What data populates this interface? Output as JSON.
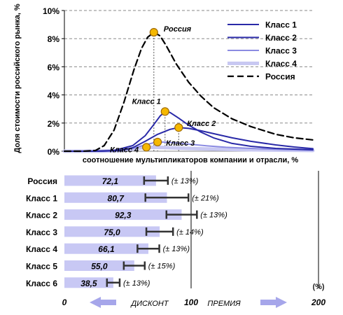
{
  "chart_data": [
    {
      "type": "line",
      "ylabel": "Доля стоимости российского рынка, %",
      "xlabel": "соотношение мультипликаторов компании и отрасли, %",
      "y_ticks": [
        "0%",
        "2%",
        "4%",
        "6%",
        "8%",
        "10%"
      ],
      "ylim": [
        0,
        10
      ],
      "xlim": [
        0,
        200
      ],
      "grid": "horizontal dashed",
      "legend_position": "top-right",
      "series": [
        {
          "name": "Класс 1",
          "color": "#2a2aa8",
          "style": "solid",
          "points": [
            [
              0,
              0
            ],
            [
              20,
              0
            ],
            [
              40,
              0.05
            ],
            [
              55,
              0.4
            ],
            [
              65,
              1.1
            ],
            [
              72,
              1.9
            ],
            [
              77,
              2.5
            ],
            [
              81,
              2.82
            ],
            [
              85,
              2.75
            ],
            [
              92,
              2.35
            ],
            [
              100,
              1.85
            ],
            [
              110,
              1.35
            ],
            [
              120,
              0.95
            ],
            [
              135,
              0.55
            ],
            [
              150,
              0.35
            ],
            [
              170,
              0.2
            ],
            [
              200,
              0.1
            ]
          ]
        },
        {
          "name": "Класс 2",
          "color": "#2a2aa8",
          "style": "solid",
          "points": [
            [
              0,
              0
            ],
            [
              30,
              0
            ],
            [
              45,
              0.05
            ],
            [
              55,
              0.25
            ],
            [
              65,
              0.7
            ],
            [
              75,
              1.2
            ],
            [
              85,
              1.55
            ],
            [
              92,
              1.68
            ],
            [
              100,
              1.62
            ],
            [
              110,
              1.45
            ],
            [
              120,
              1.25
            ],
            [
              135,
              0.95
            ],
            [
              150,
              0.7
            ],
            [
              170,
              0.45
            ],
            [
              185,
              0.3
            ],
            [
              200,
              0.18
            ]
          ]
        },
        {
          "name": "Класс 3",
          "color": "#8b8be2",
          "style": "solid",
          "points": [
            [
              0,
              0
            ],
            [
              30,
              0
            ],
            [
              45,
              0.05
            ],
            [
              55,
              0.2
            ],
            [
              65,
              0.45
            ],
            [
              72,
              0.6
            ],
            [
              78,
              0.65
            ],
            [
              85,
              0.62
            ],
            [
              100,
              0.5
            ],
            [
              115,
              0.38
            ],
            [
              130,
              0.28
            ],
            [
              150,
              0.2
            ],
            [
              175,
              0.12
            ],
            [
              200,
              0.07
            ]
          ]
        },
        {
          "name": "Класс 4",
          "color": "#c8c8f2",
          "style": "thick",
          "points": [
            [
              0,
              0
            ],
            [
              30,
              0
            ],
            [
              45,
              0.05
            ],
            [
              55,
              0.15
            ],
            [
              62,
              0.25
            ],
            [
              68,
              0.28
            ],
            [
              80,
              0.26
            ],
            [
              100,
              0.2
            ],
            [
              120,
              0.15
            ],
            [
              150,
              0.1
            ],
            [
              200,
              0.05
            ]
          ]
        },
        {
          "name": "Россия",
          "color": "#000000",
          "style": "dashed",
          "points": [
            [
              0,
              0
            ],
            [
              15,
              0
            ],
            [
              25,
              0.05
            ],
            [
              32,
              0.4
            ],
            [
              40,
              1.5
            ],
            [
              48,
              3.5
            ],
            [
              56,
              5.8
            ],
            [
              62,
              7.3
            ],
            [
              67,
              8.1
            ],
            [
              72,
              8.45
            ],
            [
              77,
              8.2
            ],
            [
              82,
              7.5
            ],
            [
              90,
              6.2
            ],
            [
              100,
              4.9
            ],
            [
              110,
              3.9
            ],
            [
              120,
              3.1
            ],
            [
              135,
              2.3
            ],
            [
              150,
              1.75
            ],
            [
              170,
              1.2
            ],
            [
              185,
              0.95
            ],
            [
              200,
              0.8
            ]
          ]
        }
      ],
      "peak_labels": [
        {
          "label": "Россия",
          "x": 72,
          "y": 8.45
        },
        {
          "label": "Класс 1",
          "x": 81,
          "y": 2.82
        },
        {
          "label": "Класс 2",
          "x": 92,
          "y": 1.68
        },
        {
          "label": "Класс 3",
          "x": 75,
          "y": 0.65
        },
        {
          "label": "Класс 4",
          "x": 66,
          "y": 0.28
        }
      ]
    },
    {
      "type": "bar",
      "orientation": "horizontal",
      "categories": [
        "Россия",
        "Класс 1",
        "Класс 2",
        "Класс 3",
        "Класс 4",
        "Класс 5",
        "Класс 6"
      ],
      "values": [
        72.1,
        80.7,
        92.3,
        75.0,
        66.1,
        55.0,
        38.5
      ],
      "value_labels": [
        "72,1",
        "80,7",
        "92,3",
        "75,0",
        "66,1",
        "55,0",
        "38,5"
      ],
      "error_pct": [
        13,
        21,
        13,
        14,
        13,
        15,
        13
      ],
      "error_labels": [
        "(± 13%)",
        "(± 21%)",
        "(± 13%)",
        "(± 14%)",
        "(± 13%)",
        "(± 15%)",
        "(± 13%)"
      ],
      "xlim": [
        0,
        200
      ],
      "x_ticks": [
        "0",
        "100",
        "200"
      ],
      "unit_label": "(%)",
      "left_arrow_label": "ДИСКОНТ",
      "right_arrow_label": "ПРЕМИЯ",
      "bar_color": "#c8c8f4",
      "error_color": "#333333"
    }
  ]
}
